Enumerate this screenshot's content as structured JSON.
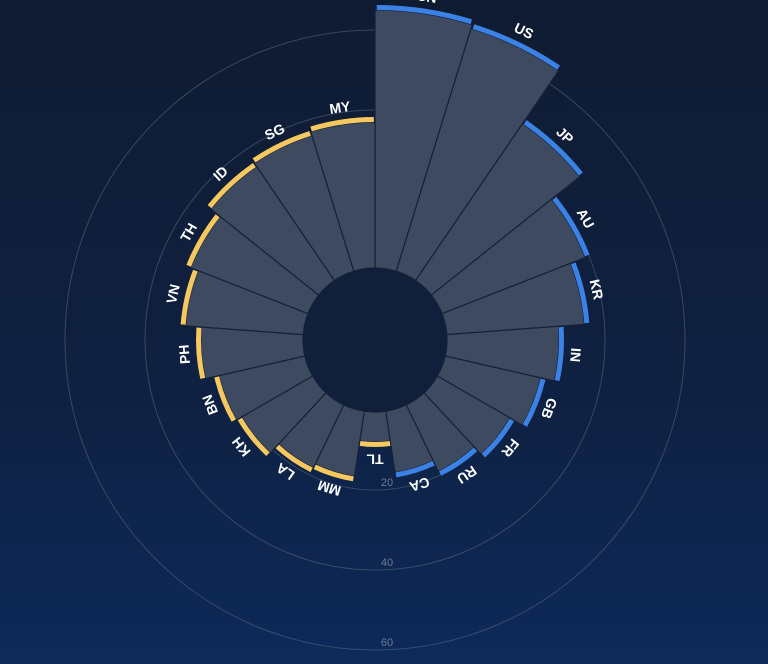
{
  "chart_data": {
    "type": "radial-bar",
    "categories": [
      "CN",
      "US",
      "JP",
      "AU",
      "KR",
      "IN",
      "GB",
      "FR",
      "RU",
      "CA",
      "TL",
      "MM",
      "LA",
      "KH",
      "BN",
      "PH",
      "VN",
      "TH",
      "ID",
      "SG",
      "MY"
    ],
    "values": [
      65,
      64,
      48,
      39,
      35,
      28.5,
      25,
      21.5,
      19,
      16,
      8,
      17,
      18,
      21,
      22.5,
      26,
      30,
      32,
      35,
      36,
      37
    ],
    "groups": [
      "blue",
      "blue",
      "blue",
      "blue",
      "blue",
      "blue",
      "blue",
      "blue",
      "blue",
      "blue",
      "yellow",
      "yellow",
      "yellow",
      "yellow",
      "yellow",
      "yellow",
      "yellow",
      "yellow",
      "yellow",
      "yellow",
      "yellow"
    ],
    "radial_ticks": [
      "20",
      "40",
      "60"
    ],
    "tick_values": [
      20,
      40,
      60
    ],
    "grid": true,
    "colors": {
      "blue": "#3b82e6",
      "yellow": "#f5c860",
      "bar": "#3e4a5f",
      "hole": "#10203a"
    }
  }
}
